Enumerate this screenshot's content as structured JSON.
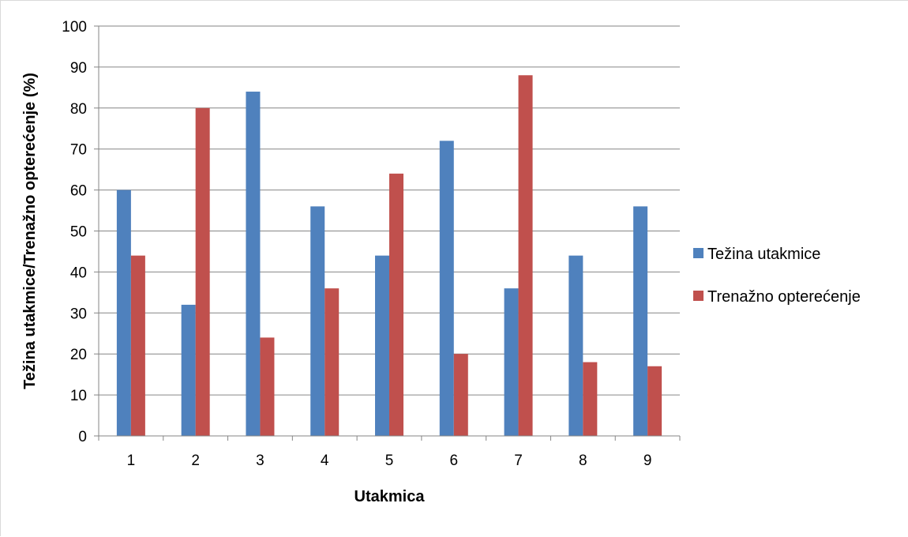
{
  "chart_data": {
    "type": "bar",
    "categories": [
      "1",
      "2",
      "3",
      "4",
      "5",
      "6",
      "7",
      "8",
      "9"
    ],
    "series": [
      {
        "name": "Težina utakmice",
        "color": "#4f81bd",
        "values": [
          60,
          32,
          84,
          56,
          44,
          72,
          36,
          44,
          56
        ]
      },
      {
        "name": "Trenažno opterećenje",
        "color": "#c0504d",
        "values": [
          44,
          80,
          24,
          36,
          64,
          20,
          88,
          18,
          17
        ]
      }
    ],
    "xlabel": "Utakmica",
    "ylabel": "Težina utakmice/Trenažno opterećenje  (%)",
    "ylim": [
      0,
      100
    ],
    "yticks": [
      0,
      10,
      20,
      30,
      40,
      50,
      60,
      70,
      80,
      90,
      100
    ],
    "grid": true,
    "legend_position": "right"
  }
}
